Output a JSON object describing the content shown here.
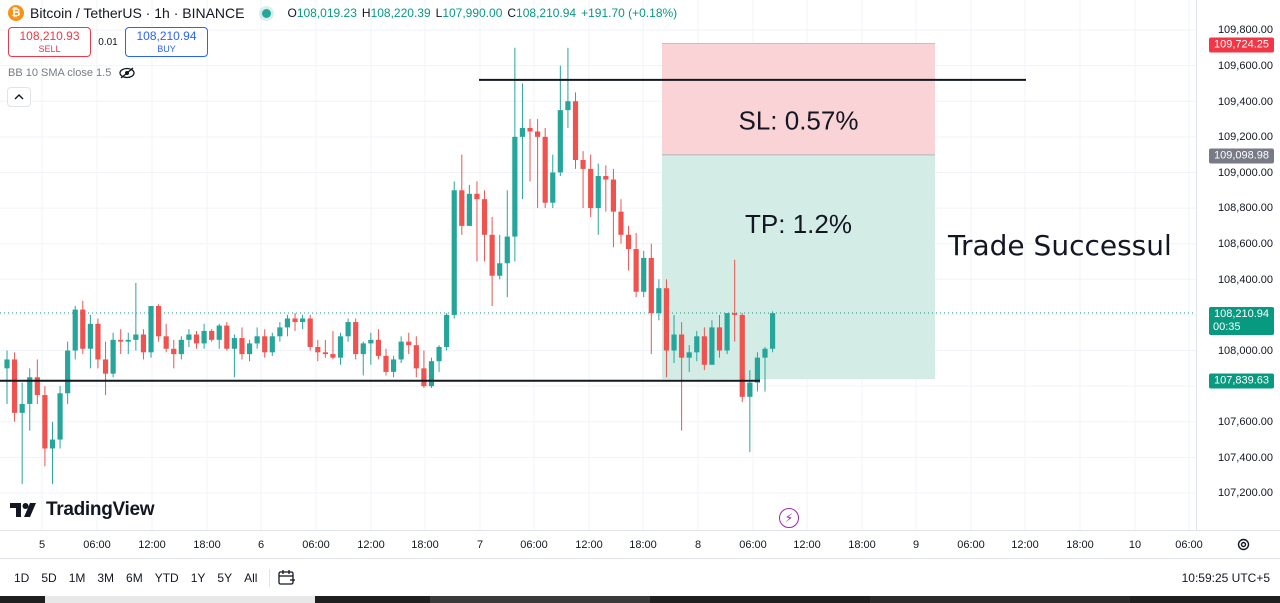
{
  "header": {
    "symbol": "Bitcoin / TetherUS · 1h · BINANCE",
    "ohlc": [
      {
        "k": "O",
        "v": "108,019.23"
      },
      {
        "k": "H",
        "v": "108,220.39"
      },
      {
        "k": "L",
        "v": "107,990.00"
      },
      {
        "k": "C",
        "v": "108,210.94"
      }
    ],
    "change": "+191.70 (+0.18%)"
  },
  "trade": {
    "sell_price": "108,210.93",
    "sell_label": "SELL",
    "spread": "0.01",
    "buy_price": "108,210.94",
    "buy_label": "BUY"
  },
  "indicator": {
    "label": "BB 10 SMA close 1.5"
  },
  "position": {
    "sl_text": "SL: 0.57%",
    "tp_text": "TP: 1.2%",
    "stop_price": 109724.25,
    "entry_price": 109098.98,
    "target_price": 107839.63
  },
  "annotation": "Trade Successul",
  "logo_text": "TradingView",
  "price_axis": {
    "ticks": [
      "109,800.00",
      "109,600.00",
      "109,400.00",
      "109,200.00",
      "109,000.00",
      "108,800.00",
      "108,600.00",
      "108,400.00",
      "108,000.00",
      "107,600.00",
      "107,400.00",
      "107,200.00"
    ],
    "stop_tag": "109,724.25",
    "entry_tag": "109,098.98",
    "current_tag": "108,210.94",
    "countdown": "00:35",
    "target_tag": "107,839.63"
  },
  "time_axis": {
    "labels": [
      "5",
      "06:00",
      "12:00",
      "18:00",
      "6",
      "06:00",
      "12:00",
      "18:00",
      "7",
      "06:00",
      "12:00",
      "18:00",
      "8",
      "06:00",
      "12:00",
      "18:00",
      "9",
      "06:00",
      "12:00",
      "18:00",
      "10",
      "06:00"
    ]
  },
  "bottom": {
    "ranges": [
      "1D",
      "5D",
      "1M",
      "3M",
      "6M",
      "YTD",
      "1Y",
      "5Y",
      "All"
    ],
    "clock": "10:59:25 UTC+5"
  },
  "colors": {
    "up": "#26a69a",
    "down": "#ef5350",
    "stop_zone": "#f9d3d6",
    "target_zone": "#d3ede6"
  },
  "chart_data": {
    "type": "candlestick",
    "interval": "1h",
    "ylim": [
      107100,
      109900
    ],
    "candles": [
      [
        107900,
        108000,
        107700,
        107950
      ],
      [
        107950,
        107990,
        107600,
        107650
      ],
      [
        107650,
        107820,
        107250,
        107700
      ],
      [
        107700,
        107900,
        107550,
        107850
      ],
      [
        107850,
        107950,
        107700,
        107750
      ],
      [
        107750,
        107800,
        107350,
        107450
      ],
      [
        107450,
        107600,
        107250,
        107500
      ],
      [
        107500,
        107800,
        107450,
        107760
      ],
      [
        107760,
        108050,
        107700,
        108000
      ],
      [
        108000,
        108250,
        107950,
        108230
      ],
      [
        108230,
        108280,
        107980,
        108010
      ],
      [
        108010,
        108200,
        107900,
        108150
      ],
      [
        108150,
        108180,
        107900,
        107950
      ],
      [
        107950,
        108050,
        107750,
        107870
      ],
      [
        107870,
        108100,
        107850,
        108060
      ],
      [
        108060,
        108120,
        107980,
        108050
      ],
      [
        108050,
        108100,
        107980,
        108060
      ],
      [
        108060,
        108380,
        108000,
        108090
      ],
      [
        108090,
        108120,
        107950,
        107990
      ],
      [
        107990,
        108250,
        107960,
        108250
      ],
      [
        108250,
        108260,
        108050,
        108080
      ],
      [
        108080,
        108150,
        107990,
        108010
      ],
      [
        108010,
        108060,
        107900,
        107980
      ],
      [
        107980,
        108080,
        107950,
        108060
      ],
      [
        108060,
        108120,
        108020,
        108090
      ],
      [
        108090,
        108110,
        108010,
        108040
      ],
      [
        108040,
        108150,
        108010,
        108110
      ],
      [
        108110,
        108120,
        108050,
        108060
      ],
      [
        108060,
        108150,
        108010,
        108140
      ],
      [
        108140,
        108160,
        108000,
        108010
      ],
      [
        108010,
        108090,
        107850,
        108070
      ],
      [
        108070,
        108130,
        107950,
        107980
      ],
      [
        107980,
        108060,
        107940,
        108040
      ],
      [
        108040,
        108130,
        108010,
        108080
      ],
      [
        108080,
        108120,
        107960,
        107990
      ],
      [
        107990,
        108100,
        107970,
        108080
      ],
      [
        108080,
        108160,
        108050,
        108130
      ],
      [
        108130,
        108200,
        108080,
        108180
      ],
      [
        108180,
        108210,
        108110,
        108160
      ],
      [
        108160,
        108200,
        108120,
        108180
      ],
      [
        108180,
        108200,
        108000,
        108020
      ],
      [
        108020,
        108060,
        107940,
        107990
      ],
      [
        107990,
        108060,
        107960,
        107980
      ],
      [
        107980,
        108110,
        107950,
        107960
      ],
      [
        107960,
        108100,
        107920,
        108080
      ],
      [
        108080,
        108180,
        108050,
        108160
      ],
      [
        108160,
        108180,
        107950,
        107980
      ],
      [
        107980,
        108050,
        107860,
        108040
      ],
      [
        108040,
        108100,
        107920,
        108060
      ],
      [
        108060,
        108120,
        107950,
        107970
      ],
      [
        107970,
        108010,
        107860,
        107880
      ],
      [
        107880,
        107970,
        107850,
        107950
      ],
      [
        107950,
        108080,
        107930,
        108050
      ],
      [
        108050,
        108100,
        107980,
        108030
      ],
      [
        108030,
        108080,
        107850,
        107900
      ],
      [
        107900,
        108000,
        107790,
        107800
      ],
      [
        107800,
        107960,
        107790,
        107940
      ],
      [
        107940,
        108030,
        107880,
        108020
      ],
      [
        108020,
        108210,
        108000,
        108200
      ],
      [
        108200,
        108950,
        108180,
        108900
      ],
      [
        108900,
        109100,
        108650,
        108700
      ],
      [
        108700,
        108930,
        108700,
        108880
      ],
      [
        108880,
        108950,
        108500,
        108850
      ],
      [
        108850,
        108900,
        108500,
        108650
      ],
      [
        108650,
        108750,
        108250,
        108420
      ],
      [
        108420,
        108650,
        108400,
        108490
      ],
      [
        108490,
        108900,
        108300,
        108640
      ],
      [
        108640,
        109700,
        108500,
        109200
      ],
      [
        109200,
        109500,
        108850,
        109250
      ],
      [
        109250,
        109300,
        108950,
        109230
      ],
      [
        109230,
        109300,
        108800,
        109200
      ],
      [
        109200,
        109250,
        108800,
        108830
      ],
      [
        108830,
        109100,
        108800,
        109000
      ],
      [
        109000,
        109600,
        108980,
        109350
      ],
      [
        109350,
        109700,
        109250,
        109400
      ],
      [
        109400,
        109450,
        109020,
        109070
      ],
      [
        109070,
        109120,
        108800,
        109020
      ],
      [
        109020,
        109100,
        108750,
        108800
      ],
      [
        108800,
        109050,
        108650,
        108980
      ],
      [
        108980,
        109040,
        108780,
        108960
      ],
      [
        108960,
        109020,
        108580,
        108780
      ],
      [
        108780,
        108850,
        108600,
        108650
      ],
      [
        108650,
        108700,
        108450,
        108570
      ],
      [
        108570,
        108660,
        108300,
        108330
      ],
      [
        108330,
        108560,
        108300,
        108520
      ],
      [
        108520,
        108600,
        107980,
        108210
      ],
      [
        108210,
        108400,
        108170,
        108350
      ],
      [
        108350,
        108400,
        107850,
        108000
      ],
      [
        108000,
        108200,
        107930,
        108090
      ],
      [
        108090,
        108160,
        107550,
        107960
      ],
      [
        107960,
        108030,
        107880,
        107990
      ],
      [
        107990,
        108110,
        107940,
        108080
      ],
      [
        108080,
        108130,
        107890,
        107920
      ],
      [
        107920,
        108170,
        107920,
        108130
      ],
      [
        108130,
        108200,
        107960,
        108000
      ],
      [
        108000,
        108210,
        107980,
        108210
      ],
      [
        108210,
        108510,
        108050,
        108200
      ],
      [
        108200,
        108210,
        107710,
        107740
      ],
      [
        107740,
        107890,
        107430,
        107820
      ],
      [
        107820,
        107990,
        107770,
        107960
      ],
      [
        107960,
        108020,
        107770,
        108010
      ],
      [
        108010,
        108220,
        107990,
        108210
      ]
    ],
    "horizontal_lines": [
      109520,
      107830
    ]
  }
}
